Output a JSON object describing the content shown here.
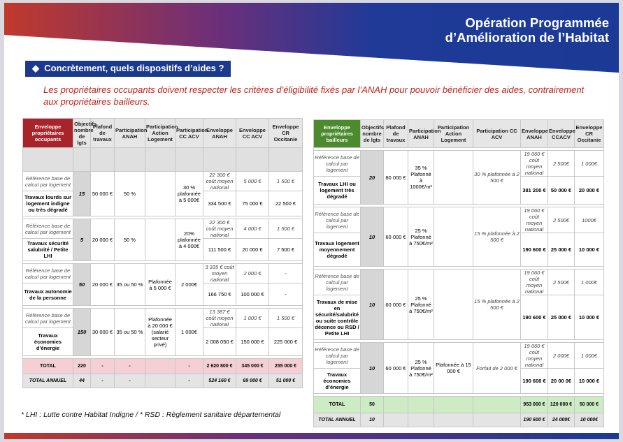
{
  "header": {
    "title_line1": "Opération Programmée",
    "title_line2": "d’Amélioration de l’Habitat",
    "colors": {
      "navy": "#1b3a8c",
      "red": "#c0231a",
      "green": "#4c8a2e",
      "crimson": "#a8242a"
    }
  },
  "section": {
    "bullet": "◆",
    "heading": "Concrètement, quels dispositifs d’aides ?"
  },
  "intro_text": "Les propriétaires occupants doivent respecter les critères d’éligibilité fixés par l’ANAH pour pouvoir bénéficier des aides, contrairement aux propriétaires bailleurs.",
  "occupants": {
    "corner": "Enveloppe propriétaires occupants",
    "headers": [
      "Objectifs nombre de lgts",
      "Plafond de travaux",
      "Participation ANAH",
      "Participation Action Logement",
      "Participation CC ACV",
      "Enveloppe ANAH",
      "Enveloppe CC ACV",
      "Enveloppe CR Occitanie"
    ],
    "rows": [
      {
        "ref": "Référence base de calcul par logement",
        "label": "Travaux lourds sur logement indigne ou très dégradé",
        "obj": "15",
        "plafond": "50 000 €",
        "anah": "50 %",
        "action": "",
        "cc": "30 % plafonnée à 5 000€",
        "ref_anah": "22 300 € coût moyen national",
        "ref_ccacv": "5 000 €",
        "ref_cr": "1 500 €",
        "env_anah": "334 500 €",
        "env_ccacv": "75 000 €",
        "env_cr": "22 500 €"
      },
      {
        "ref": "Référence base de calcul par logement",
        "label": "Travaux sécurité salubrité / Petite LHI",
        "obj": "5",
        "plafond": "20 000 €",
        "anah": "50 %",
        "action": "",
        "cc": "20% plafonnée à 4 000€",
        "ref_anah": "22 300 € coût moyen national",
        "ref_ccacv": "4 000 €",
        "ref_cr": "1 500 €",
        "env_anah": "111 500 €",
        "env_ccacv": "20 000 €",
        "env_cr": "7 500 €"
      },
      {
        "ref": "Référence base de calcul par logement",
        "label": "Travaux autonomie de la personne",
        "obj": "50",
        "plafond": "20 000 €",
        "anah": "35 ou 50 %",
        "action": "Plafonnée à 5 000 €",
        "cc": "2 000€",
        "ref_anah": "3 335 € coût moyen national",
        "ref_ccacv": "2 000 €",
        "ref_cr": "-",
        "env_anah": "166 750 €",
        "env_ccacv": "100 000 €",
        "env_cr": "-"
      },
      {
        "ref": "Référence base de calcul par logement",
        "label": "Travaux économies d’énergie",
        "obj": "150",
        "plafond": "30 000 €",
        "anah": "35 ou 50 %",
        "action": "Plafonnée à 20 000 € (salarié secteur privé)",
        "cc": "1 000€",
        "ref_anah": "13 387 € coût moyen national",
        "ref_ccacv": "1 000 €",
        "ref_cr": "1 500 €",
        "env_anah": "2 008 050 €",
        "env_ccacv": "150 000 €",
        "env_cr": "225 000 €"
      }
    ],
    "total": {
      "label": "TOTAL",
      "obj": "220",
      "plafond": "-",
      "anah": "-",
      "action": "",
      "cc": "-",
      "env_anah": "2 620 800 €",
      "env_ccacv": "345 000 €",
      "env_cr": "255 000 €"
    },
    "annual": {
      "label": "TOTAL ANNUEL",
      "obj": "44",
      "plafond": "-",
      "anah": "-",
      "action": "",
      "cc": "-",
      "env_anah": "524 160 €",
      "env_ccacv": "69 000 €",
      "env_cr": "51 000 €"
    }
  },
  "bailleurs": {
    "corner": "Enveloppe propriétaires bailleurs",
    "headers": [
      "Objectifs nombre de lgts",
      "Plafond de travaux",
      "Participation ANAH",
      "Participation Action Logement",
      "Participation CC ACV",
      "Enveloppe ANAH",
      "Enveloppe CCACV",
      "Enveloppe CR Occitanie"
    ],
    "rows": [
      {
        "ref": "Référence base de calcul par logement",
        "label": "Travaux LHI ou logement très dégradé",
        "obj": "20",
        "plafond": "80 000 €",
        "anah": "35 % Plafonné à 1000€/m²",
        "action": "",
        "cc": "30 % plafonnée à 2 500 €",
        "ref_anah": "19 060 € coût moyen national",
        "ref_ccacv": "2 500€",
        "ref_cr": "1 000€",
        "env_anah": "381 200 €",
        "env_ccacv": "50 000 €",
        "env_cr": "20 000 €"
      },
      {
        "ref": "Référence base de calcul par logement",
        "label": "Travaux logement moyennement dégradé",
        "obj": "10",
        "plafond": "60 000 €",
        "anah": "25 % Plafonné à 750€/m²",
        "action": "",
        "cc": "15 % plafonnée à 2 500 €",
        "ref_anah": "19 060 € coût moyen national",
        "ref_ccacv": "2 500€",
        "ref_cr": "1000€",
        "env_anah": "190 600 €",
        "env_ccacv": "25 000 €",
        "env_cr": "10 000 €"
      },
      {
        "ref": "Référence base de calcul par logement",
        "label": "Travaux de mise en sécurité/salubrité ou suite contrôle décence ou RSD / Petite LHI",
        "obj": "10",
        "plafond": "60 000 €",
        "anah": "25 % Plafonné à 750€/m²",
        "action": "",
        "cc": "15 % plafonnée à 2 500 €",
        "ref_anah": "19 060 € coût moyen national",
        "ref_ccacv": "2 500€",
        "ref_cr": "1 000€",
        "env_anah": "190 600 €",
        "env_ccacv": "25 000 €",
        "env_cr": "10 000 €"
      },
      {
        "ref": "Référence base de calcul par logement",
        "label": "Travaux économies d’énergie",
        "obj": "10",
        "plafond": "60 000 €",
        "anah": "25 % Plafonné à 750€/m²",
        "action": "Plafonnée à 15 000 €",
        "cc": "Forfait de 2 000 €",
        "ref_anah": "19 060 € coût moyen national",
        "ref_ccacv": "2 000€",
        "ref_cr": "1 000€",
        "env_anah": "190 600 €",
        "env_ccacv": "20 00 0€",
        "env_cr": "10 000 €"
      }
    ],
    "total": {
      "label": "TOTAL",
      "obj": "50",
      "plafond": "",
      "anah": "",
      "action": "",
      "cc": "",
      "env_anah": "953 000 €",
      "env_ccacv": "120 000 €",
      "env_cr": "50 000 €"
    },
    "annual": {
      "label": "TOTAL ANNUEL",
      "obj": "10",
      "plafond": "",
      "anah": "",
      "action": "",
      "cc": "",
      "env_anah": "190 600 €",
      "env_ccacv": "24 000€",
      "env_cr": "10 000€"
    }
  },
  "footnote": "* LHI : Lutte contre Habitat Indigne / * RSD : Règlement sanitaire départemental"
}
